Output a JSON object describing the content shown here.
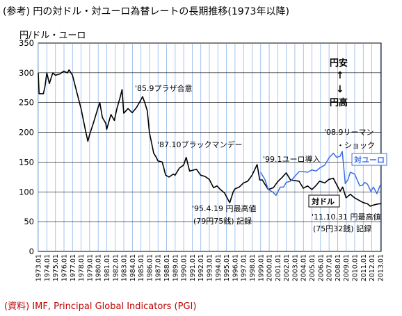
{
  "title": "(参考) 円の対ドル・対ユーロ為替レートの長期推移(1973年以降)",
  "unit": "円/ドル・ユーロ",
  "source": "(資料) IMF, Principal Global Indicators (PGI)",
  "colors": {
    "usd": "#000000",
    "eur": "#3c6ee6",
    "grid": "#8fb6e8",
    "source": "#c00000"
  },
  "chart_data": {
    "type": "line",
    "ylim": [
      0,
      350
    ],
    "yticks": [
      0,
      50,
      100,
      150,
      200,
      250,
      300,
      350
    ],
    "xlim": [
      1973.0,
      2013.1
    ],
    "xtick_labels": [
      "1973.01",
      "1974.01",
      "1975.01",
      "1976.01",
      "1977.01",
      "1978.01",
      "1979.01",
      "1980.01",
      "1981.01",
      "1982.01",
      "1983.01",
      "1984.01",
      "1985.01",
      "1986.01",
      "1987.01",
      "1988.01",
      "1989.01",
      "1990.01",
      "1991.01",
      "1992.01",
      "1993.01",
      "1994.01",
      "1995.01",
      "1996.01",
      "1997.01",
      "1998.01",
      "1999.01",
      "2000.01",
      "2001.01",
      "2002.01",
      "2003.01",
      "2004.01",
      "2005.01",
      "2006.01",
      "2007.01",
      "2008.01",
      "2009.01",
      "2010.01",
      "2011.01",
      "2012.01",
      "2013.01"
    ],
    "series": [
      {
        "name": "対ドル",
        "color": "#000000",
        "points": [
          [
            1973.0,
            300
          ],
          [
            1973.1,
            265
          ],
          [
            1973.6,
            265
          ],
          [
            1973.8,
            278
          ],
          [
            1974.0,
            300
          ],
          [
            1974.3,
            282
          ],
          [
            1974.7,
            300
          ],
          [
            1975.0,
            296
          ],
          [
            1975.5,
            298
          ],
          [
            1976.0,
            303
          ],
          [
            1976.4,
            300
          ],
          [
            1976.6,
            305
          ],
          [
            1977.0,
            296
          ],
          [
            1977.5,
            268
          ],
          [
            1978.0,
            240
          ],
          [
            1978.5,
            205
          ],
          [
            1978.8,
            185
          ],
          [
            1979.0,
            196
          ],
          [
            1979.5,
            218
          ],
          [
            1980.0,
            242
          ],
          [
            1980.2,
            250
          ],
          [
            1980.5,
            225
          ],
          [
            1980.9,
            215
          ],
          [
            1981.0,
            205
          ],
          [
            1981.5,
            230
          ],
          [
            1981.9,
            220
          ],
          [
            1982.2,
            240
          ],
          [
            1982.6,
            260
          ],
          [
            1982.8,
            272
          ],
          [
            1983.0,
            232
          ],
          [
            1983.5,
            240
          ],
          [
            1984.0,
            233
          ],
          [
            1984.5,
            242
          ],
          [
            1984.9,
            252
          ],
          [
            1985.2,
            260
          ],
          [
            1985.5,
            248
          ],
          [
            1985.75,
            236
          ],
          [
            1986.0,
            200
          ],
          [
            1986.5,
            165
          ],
          [
            1986.8,
            158
          ],
          [
            1987.0,
            152
          ],
          [
            1987.5,
            150
          ],
          [
            1987.9,
            128
          ],
          [
            1988.3,
            125
          ],
          [
            1988.8,
            130
          ],
          [
            1989.0,
            128
          ],
          [
            1989.5,
            140
          ],
          [
            1990.0,
            145
          ],
          [
            1990.3,
            158
          ],
          [
            1990.7,
            135
          ],
          [
            1991.0,
            136
          ],
          [
            1991.5,
            138
          ],
          [
            1992.0,
            128
          ],
          [
            1992.5,
            126
          ],
          [
            1993.0,
            121
          ],
          [
            1993.5,
            107
          ],
          [
            1993.9,
            110
          ],
          [
            1994.3,
            104
          ],
          [
            1994.8,
            98
          ],
          [
            1995.3,
            84
          ],
          [
            1995.4,
            82
          ],
          [
            1995.8,
            100
          ],
          [
            1996.0,
            105
          ],
          [
            1996.5,
            108
          ],
          [
            1997.0,
            115
          ],
          [
            1997.5,
            118
          ],
          [
            1998.0,
            128
          ],
          [
            1998.6,
            146
          ],
          [
            1998.9,
            120
          ],
          [
            1999.2,
            120
          ],
          [
            1999.9,
            104
          ],
          [
            2000.5,
            107
          ],
          [
            2001.0,
            117
          ],
          [
            2001.5,
            124
          ],
          [
            2002.0,
            132
          ],
          [
            2002.5,
            120
          ],
          [
            2003.0,
            119
          ],
          [
            2003.5,
            118
          ],
          [
            2004.0,
            106
          ],
          [
            2004.5,
            110
          ],
          [
            2005.0,
            104
          ],
          [
            2005.5,
            111
          ],
          [
            2005.9,
            118
          ],
          [
            2006.5,
            115
          ],
          [
            2007.0,
            121
          ],
          [
            2007.5,
            123
          ],
          [
            2007.9,
            112
          ],
          [
            2008.3,
            101
          ],
          [
            2008.6,
            108
          ],
          [
            2009.0,
            90
          ],
          [
            2009.5,
            96
          ],
          [
            2010.0,
            90
          ],
          [
            2010.5,
            86
          ],
          [
            2011.0,
            82
          ],
          [
            2011.5,
            80
          ],
          [
            2011.83,
            76
          ],
          [
            2012.0,
            77
          ],
          [
            2012.5,
            79
          ],
          [
            2012.9,
            80
          ],
          [
            2013.05,
            80
          ]
        ]
      },
      {
        "name": "対ユーロ",
        "color": "#3c6ee6",
        "points": [
          [
            1999.0,
            133
          ],
          [
            1999.5,
            121
          ],
          [
            1999.9,
            104
          ],
          [
            2000.4,
            100
          ],
          [
            2000.8,
            94
          ],
          [
            2001.3,
            108
          ],
          [
            2001.7,
            108
          ],
          [
            2002.0,
            116
          ],
          [
            2002.5,
            118
          ],
          [
            2003.0,
            126
          ],
          [
            2003.5,
            134
          ],
          [
            2004.0,
            134
          ],
          [
            2004.5,
            133
          ],
          [
            2005.0,
            137
          ],
          [
            2005.5,
            135
          ],
          [
            2005.9,
            140
          ],
          [
            2006.5,
            145
          ],
          [
            2007.0,
            157
          ],
          [
            2007.5,
            165
          ],
          [
            2007.9,
            158
          ],
          [
            2008.3,
            160
          ],
          [
            2008.55,
            168
          ],
          [
            2008.9,
            114
          ],
          [
            2009.2,
            120
          ],
          [
            2009.5,
            133
          ],
          [
            2010.0,
            130
          ],
          [
            2010.3,
            120
          ],
          [
            2010.6,
            110
          ],
          [
            2010.9,
            111
          ],
          [
            2011.2,
            116
          ],
          [
            2011.5,
            113
          ],
          [
            2011.9,
            101
          ],
          [
            2012.2,
            108
          ],
          [
            2012.6,
            97
          ],
          [
            2012.9,
            108
          ],
          [
            2013.05,
            112
          ]
        ]
      }
    ],
    "annotations": {
      "plaza": "'85.9プラザ合意",
      "black_monday": "'87.10ブラックマンデー",
      "euro_intro": "'99.1ユーロ導入",
      "lehman_1": "'08.9リーマン",
      "lehman_2": "・ショック",
      "high95_1": "'95.4.19 円最高値",
      "high95_2": "(79円75銭) 記録",
      "high11_1": "'11.10.31 円最高値",
      "high11_2": "(75円32銭) 記録",
      "weak_yen": "円安",
      "strong_yen": "円高",
      "arrow_up": "↑",
      "arrow_down": "↓",
      "label_eur": "対ユーロ",
      "label_usd": "対ドル"
    }
  }
}
